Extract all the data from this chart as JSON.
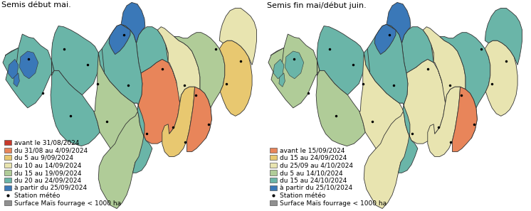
{
  "title_left": "Semis début mai.",
  "title_right": "Semis fin mai/début juin.",
  "legend_left": {
    "colors": [
      "#c8392b",
      "#e8855a",
      "#e8c870",
      "#e8e4b0",
      "#b0cc98",
      "#6ab5a8",
      "#3a78b8"
    ],
    "labels": [
      "avant le 31/08/2024",
      "du 31/08 au 4/09/2024",
      "du 5 au 9/09/2024",
      "du 10 au 14/09/2024",
      "du 15 au 19/09/2024",
      "du 20 au 24/09/2024",
      "à partir du 25/09/2024"
    ],
    "extra_labels": [
      "Station météo",
      "Surface Maïs fourrage < 1000 ha"
    ],
    "extra_colors": [
      "black",
      "#909090"
    ]
  },
  "legend_right": {
    "colors": [
      "#e8855a",
      "#e8c870",
      "#e8e4b0",
      "#b0cc98",
      "#6ab5a8",
      "#3a78b8"
    ],
    "labels": [
      "avant le 15/09/2024",
      "du 15 au 24/09/2024",
      "du 25/09 au 4/10/2024",
      "du 5 au 14/10/2024",
      "du 15 au 24/10/2024",
      "à partir du 25/10/2024"
    ],
    "extra_labels": [
      "Station météo",
      "Surface Maïs fourrage < 1000 ha"
    ],
    "extra_colors": [
      "black",
      "#909090"
    ]
  },
  "background_color": "#ffffff",
  "title_fontsize": 8.0,
  "legend_fontsize": 6.5,
  "xlim": [
    -5.3,
    2.2
  ],
  "ylim": [
    46.55,
    49.15
  ]
}
